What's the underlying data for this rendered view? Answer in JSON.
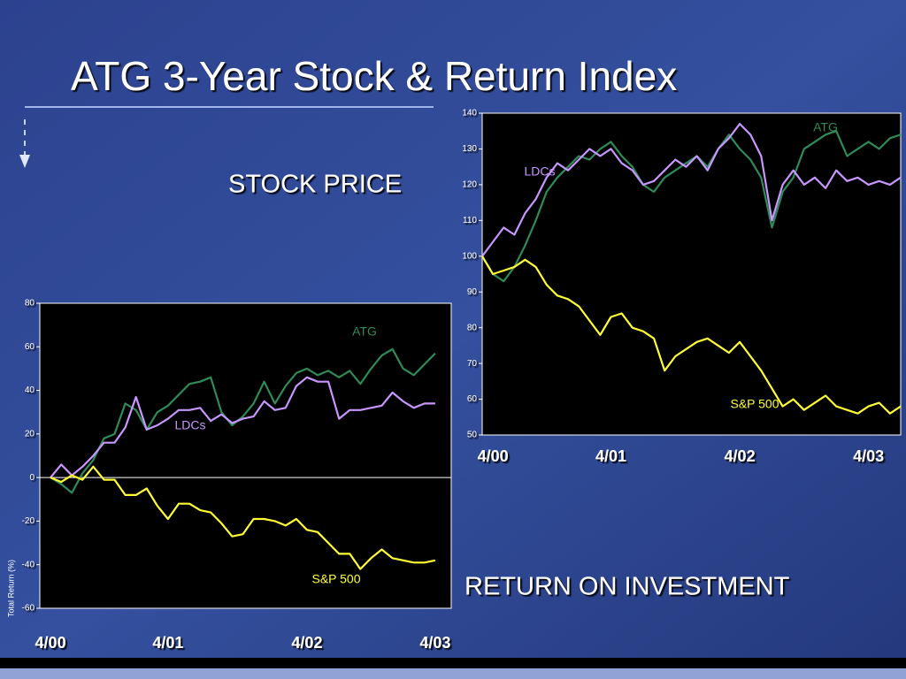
{
  "title": "ATG 3-Year Stock & Return Index",
  "chart_data": [
    {
      "type": "line",
      "title": "STOCK PRICE",
      "x": [
        0,
        1,
        2,
        3,
        4,
        5,
        6,
        7,
        8,
        9,
        10,
        11,
        12,
        13,
        14,
        15,
        16,
        17,
        18,
        19,
        20,
        21,
        22,
        23,
        24,
        25,
        26,
        27,
        28,
        29,
        30,
        31,
        32,
        33,
        34,
        35,
        36,
        37,
        38,
        39
      ],
      "xlim": [
        0,
        39
      ],
      "xticks": [
        {
          "value": 1,
          "label": "4/00"
        },
        {
          "value": 12,
          "label": "4/01"
        },
        {
          "value": 24,
          "label": "4/02"
        },
        {
          "value": 36,
          "label": "4/03"
        }
      ],
      "ylim": [
        50,
        140
      ],
      "yticks": [
        50,
        60,
        70,
        80,
        90,
        100,
        110,
        120,
        130,
        140
      ],
      "series": [
        {
          "name": "ATG",
          "color": "#2e8b57",
          "values": [
            100,
            95,
            93,
            97,
            103,
            110,
            118,
            122,
            125,
            128,
            127,
            130,
            132,
            128,
            125,
            120,
            118,
            122,
            124,
            126,
            128,
            125,
            130,
            134,
            130,
            127,
            122,
            108,
            118,
            122,
            130,
            132,
            134,
            135,
            128,
            130,
            132,
            130,
            133,
            134
          ]
        },
        {
          "name": "LDCs",
          "color": "#c896ff",
          "values": [
            100,
            104,
            108,
            106,
            112,
            116,
            122,
            126,
            124,
            127,
            130,
            128,
            130,
            126,
            124,
            120,
            121,
            124,
            127,
            125,
            128,
            124,
            130,
            133,
            137,
            134,
            128,
            110,
            120,
            124,
            120,
            122,
            119,
            124,
            121,
            122,
            120,
            121,
            120,
            122
          ]
        },
        {
          "name": "S&P 500",
          "color": "#ffff33",
          "values": [
            100,
            95,
            96,
            97,
            99,
            97,
            92,
            89,
            88,
            86,
            82,
            78,
            83,
            84,
            80,
            79,
            77,
            68,
            72,
            74,
            76,
            77,
            75,
            73,
            76,
            72,
            68,
            63,
            58,
            60,
            57,
            59,
            61,
            58,
            57,
            56,
            58,
            59,
            56,
            58
          ]
        }
      ]
    },
    {
      "type": "line",
      "title": "RETURN ON INVESTMENT",
      "y_label": "Total Return (%)",
      "x": [
        0,
        1,
        2,
        3,
        4,
        5,
        6,
        7,
        8,
        9,
        10,
        11,
        12,
        13,
        14,
        15,
        16,
        17,
        18,
        19,
        20,
        21,
        22,
        23,
        24,
        25,
        26,
        27,
        28,
        29,
        30,
        31,
        32,
        33,
        34,
        35,
        36
      ],
      "xlim": [
        -1,
        37.5
      ],
      "xticks": [
        {
          "value": 0,
          "label": "4/00"
        },
        {
          "value": 11,
          "label": "4/01"
        },
        {
          "value": 24,
          "label": "4/02"
        },
        {
          "value": 36,
          "label": "4/03"
        }
      ],
      "ylim": [
        -60,
        80
      ],
      "yticks": [
        -60,
        -40,
        -20,
        0,
        20,
        40,
        60,
        80
      ],
      "series": [
        {
          "name": "ATG",
          "color": "#2e8b57",
          "values": [
            0,
            -3,
            -7,
            2,
            8,
            18,
            20,
            34,
            31,
            22,
            30,
            33,
            38,
            43,
            44,
            46,
            30,
            24,
            28,
            34,
            44,
            34,
            42,
            48,
            50,
            47,
            49,
            46,
            49,
            43,
            50,
            56,
            59,
            50,
            47,
            52,
            57
          ]
        },
        {
          "name": "LDCs",
          "color": "#c896ff",
          "values": [
            0,
            6,
            1,
            5,
            10,
            16,
            16,
            23,
            37,
            22,
            24,
            27,
            31,
            31,
            32,
            26,
            29,
            25,
            27,
            28,
            35,
            31,
            32,
            42,
            46,
            44,
            44,
            27,
            31,
            31,
            32,
            33,
            39,
            35,
            32,
            34,
            34
          ]
        },
        {
          "name": "S&P 500",
          "color": "#ffff33",
          "values": [
            0,
            -2,
            1,
            -1,
            5,
            -1,
            -1,
            -8,
            -8,
            -5,
            -13,
            -19,
            -12,
            -12,
            -15,
            -16,
            -21,
            -27,
            -26,
            -19,
            -19,
            -20,
            -22,
            -19,
            -24,
            -25,
            -30,
            -35,
            -35,
            -42,
            -37,
            -33,
            -37,
            -38,
            -39,
            -39,
            -38
          ]
        }
      ]
    }
  ]
}
